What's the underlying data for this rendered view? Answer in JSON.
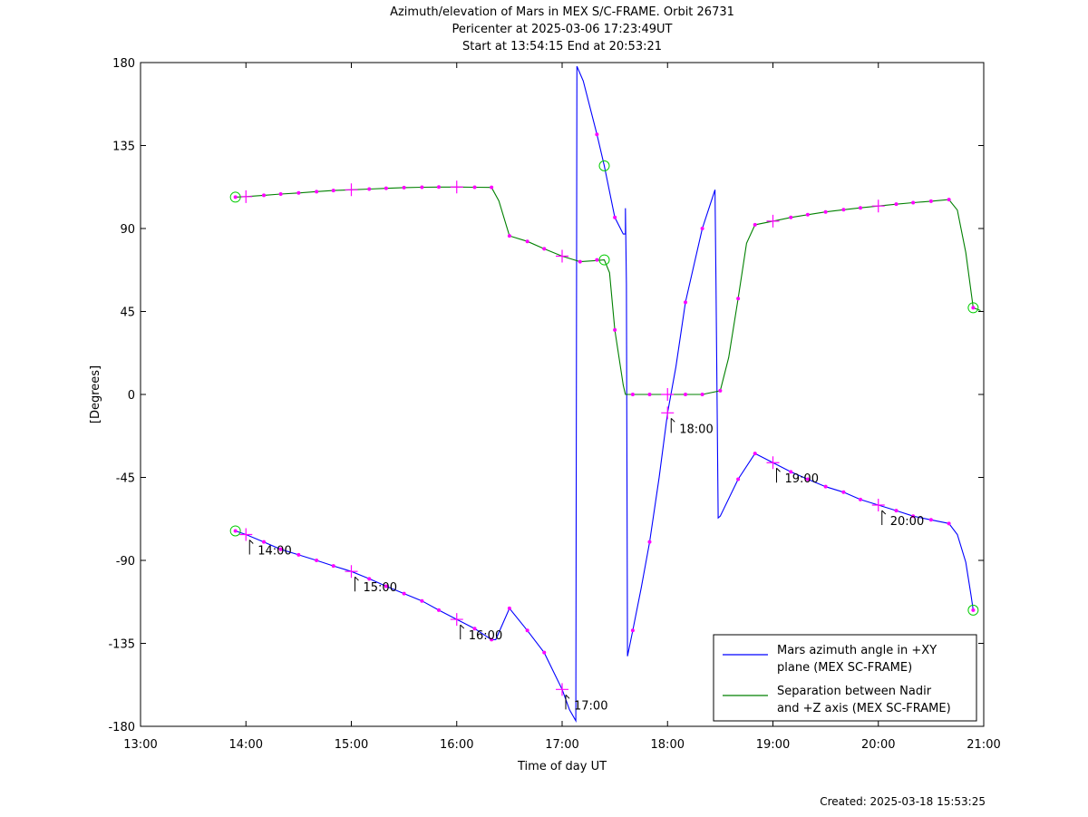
{
  "chart_data": {
    "type": "line",
    "title": [
      "Azimuth/elevation of Mars in MEX S/C-FRAME.  Orbit 26731",
      "Pericenter at 2025-03-06 17:23:49UT",
      "Start at 13:54:15 End at 20:53:21"
    ],
    "xlabel": "Time of day UT",
    "ylabel": "[Degrees]",
    "x_unit": "hours UT",
    "xlim": [
      13,
      21
    ],
    "ylim": [
      -180,
      180
    ],
    "x_ticks": [
      {
        "value": 13,
        "label": "13:00"
      },
      {
        "value": 14,
        "label": "14:00"
      },
      {
        "value": 15,
        "label": "15:00"
      },
      {
        "value": 16,
        "label": "16:00"
      },
      {
        "value": 17,
        "label": "17:00"
      },
      {
        "value": 18,
        "label": "18:00"
      },
      {
        "value": 19,
        "label": "19:00"
      },
      {
        "value": 20,
        "label": "20:00"
      },
      {
        "value": 21,
        "label": "21:00"
      }
    ],
    "y_ticks": [
      {
        "value": 180,
        "label": "180"
      },
      {
        "value": 135,
        "label": "135"
      },
      {
        "value": 90,
        "label": "90"
      },
      {
        "value": 45,
        "label": "45"
      },
      {
        "value": 0,
        "label": "0"
      },
      {
        "value": -45,
        "label": "-45"
      },
      {
        "value": -90,
        "label": "-90"
      },
      {
        "value": -135,
        "label": "-135"
      },
      {
        "value": -180,
        "label": "-180"
      }
    ],
    "grid": false,
    "legend_position": "bottom-right",
    "series": [
      {
        "name": "Mars azimuth angle in +XY plane (MEX SC-FRAME)",
        "legend_lines": [
          "Mars azimuth angle in +XY",
          "plane (MEX SC-FRAME)"
        ],
        "color": "#0000ff",
        "points": [
          [
            13.9,
            -74
          ],
          [
            14.0,
            -76
          ],
          [
            14.17,
            -80
          ],
          [
            14.33,
            -84
          ],
          [
            14.5,
            -87
          ],
          [
            14.67,
            -90
          ],
          [
            14.83,
            -93
          ],
          [
            15.0,
            -96
          ],
          [
            15.17,
            -100
          ],
          [
            15.33,
            -104
          ],
          [
            15.5,
            -108
          ],
          [
            15.67,
            -112
          ],
          [
            15.83,
            -117
          ],
          [
            16.0,
            -122
          ],
          [
            16.17,
            -127
          ],
          [
            16.33,
            -133
          ],
          [
            16.37,
            -133
          ],
          [
            16.5,
            -116
          ],
          [
            16.67,
            -128
          ],
          [
            16.83,
            -140
          ],
          [
            17.0,
            -160
          ],
          [
            17.07,
            -171
          ],
          [
            17.13,
            -177
          ],
          [
            17.14,
            178
          ],
          [
            17.2,
            170
          ],
          [
            17.33,
            141
          ],
          [
            17.4,
            124
          ],
          [
            17.5,
            96
          ],
          [
            17.58,
            87
          ],
          [
            17.6,
            87
          ],
          [
            17.6,
            101
          ],
          [
            17.61,
            60
          ],
          [
            17.62,
            -142
          ],
          [
            17.67,
            -128
          ],
          [
            17.75,
            -105
          ],
          [
            17.83,
            -80
          ],
          [
            17.92,
            -45
          ],
          [
            18.0,
            -10
          ],
          [
            18.08,
            15
          ],
          [
            18.17,
            50
          ],
          [
            18.33,
            90
          ],
          [
            18.45,
            111
          ],
          [
            18.46,
            60
          ],
          [
            18.48,
            -67
          ],
          [
            18.5,
            -66
          ],
          [
            18.67,
            -46
          ],
          [
            18.83,
            -32
          ],
          [
            19.0,
            -37
          ],
          [
            19.17,
            -42
          ],
          [
            19.33,
            -46
          ],
          [
            19.5,
            -50
          ],
          [
            19.67,
            -53
          ],
          [
            19.83,
            -57
          ],
          [
            20.0,
            -60
          ],
          [
            20.17,
            -63
          ],
          [
            20.33,
            -66
          ],
          [
            20.5,
            -68
          ],
          [
            20.67,
            -70
          ],
          [
            20.75,
            -76
          ],
          [
            20.83,
            -91
          ],
          [
            20.88,
            -109
          ],
          [
            20.9,
            -117
          ]
        ],
        "markers": [
          [
            13.9,
            -74
          ],
          [
            14.17,
            -80
          ],
          [
            14.33,
            -84
          ],
          [
            14.5,
            -87
          ],
          [
            14.67,
            -90
          ],
          [
            14.83,
            -93
          ],
          [
            15.17,
            -100
          ],
          [
            15.33,
            -104
          ],
          [
            15.5,
            -108
          ],
          [
            15.67,
            -112
          ],
          [
            15.83,
            -117
          ],
          [
            16.17,
            -127
          ],
          [
            16.33,
            -133
          ],
          [
            16.5,
            -116
          ],
          [
            16.67,
            -128
          ],
          [
            16.83,
            -140
          ],
          [
            17.33,
            141
          ],
          [
            17.5,
            96
          ],
          [
            17.67,
            -128
          ],
          [
            17.83,
            -80
          ],
          [
            18.17,
            50
          ],
          [
            18.33,
            90
          ],
          [
            18.67,
            -46
          ],
          [
            18.83,
            -32
          ],
          [
            19.17,
            -42
          ],
          [
            19.33,
            -46
          ],
          [
            19.5,
            -50
          ],
          [
            19.67,
            -53
          ],
          [
            19.83,
            -57
          ],
          [
            20.17,
            -63
          ],
          [
            20.33,
            -66
          ],
          [
            20.5,
            -68
          ],
          [
            20.67,
            -70
          ],
          [
            20.9,
            -117
          ]
        ],
        "hour_markers": [
          [
            14.0,
            -76
          ],
          [
            15.0,
            -96
          ],
          [
            16.0,
            -122
          ],
          [
            17.0,
            -160
          ],
          [
            18.0,
            -10
          ],
          [
            19.0,
            -37
          ],
          [
            20.0,
            -60
          ]
        ],
        "circles": [
          [
            13.9,
            -74
          ],
          [
            17.4,
            124
          ],
          [
            20.9,
            -117
          ]
        ]
      },
      {
        "name": "Separation between Nadir and +Z axis (MEX SC-FRAME)",
        "legend_lines": [
          "Separation between Nadir",
          "and +Z axis (MEX SC-FRAME)"
        ],
        "color": "#008000",
        "points": [
          [
            13.9,
            107
          ],
          [
            14.0,
            107.3
          ],
          [
            14.17,
            108
          ],
          [
            14.33,
            108.7
          ],
          [
            14.5,
            109.3
          ],
          [
            14.67,
            110
          ],
          [
            14.83,
            110.6
          ],
          [
            15.0,
            111
          ],
          [
            15.17,
            111.4
          ],
          [
            15.33,
            111.8
          ],
          [
            15.5,
            112.2
          ],
          [
            15.67,
            112.4
          ],
          [
            15.83,
            112.5
          ],
          [
            16.0,
            112.5
          ],
          [
            16.17,
            112.4
          ],
          [
            16.33,
            112.3
          ],
          [
            16.4,
            105
          ],
          [
            16.5,
            86
          ],
          [
            16.67,
            83
          ],
          [
            16.83,
            79
          ],
          [
            17.0,
            75
          ],
          [
            17.17,
            72
          ],
          [
            17.3,
            72.5
          ],
          [
            17.4,
            73
          ],
          [
            17.45,
            66
          ],
          [
            17.5,
            35
          ],
          [
            17.58,
            5
          ],
          [
            17.6,
            0
          ],
          [
            17.67,
            0
          ],
          [
            17.83,
            0
          ],
          [
            18.0,
            0
          ],
          [
            18.17,
            0
          ],
          [
            18.33,
            0
          ],
          [
            18.5,
            2
          ],
          [
            18.58,
            20
          ],
          [
            18.67,
            52
          ],
          [
            18.75,
            82
          ],
          [
            18.83,
            92
          ],
          [
            19.0,
            94
          ],
          [
            19.17,
            96
          ],
          [
            19.33,
            97.5
          ],
          [
            19.5,
            99
          ],
          [
            19.67,
            100.2
          ],
          [
            19.83,
            101.2
          ],
          [
            20.0,
            102.2
          ],
          [
            20.17,
            103.2
          ],
          [
            20.33,
            104
          ],
          [
            20.5,
            104.8
          ],
          [
            20.67,
            105.7
          ],
          [
            20.75,
            100
          ],
          [
            20.83,
            77
          ],
          [
            20.9,
            47
          ],
          [
            20.97,
            45.5
          ]
        ],
        "markers": [
          [
            13.9,
            107
          ],
          [
            14.17,
            108
          ],
          [
            14.33,
            108.7
          ],
          [
            14.5,
            109.3
          ],
          [
            14.67,
            110
          ],
          [
            14.83,
            110.6
          ],
          [
            15.17,
            111.4
          ],
          [
            15.33,
            111.8
          ],
          [
            15.5,
            112.2
          ],
          [
            15.67,
            112.4
          ],
          [
            15.83,
            112.5
          ],
          [
            16.17,
            112.4
          ],
          [
            16.33,
            112.3
          ],
          [
            16.5,
            86
          ],
          [
            16.67,
            83
          ],
          [
            16.83,
            79
          ],
          [
            17.17,
            72
          ],
          [
            17.33,
            73
          ],
          [
            17.5,
            35
          ],
          [
            17.67,
            0
          ],
          [
            17.83,
            0
          ],
          [
            18.17,
            0
          ],
          [
            18.33,
            0
          ],
          [
            18.5,
            2
          ],
          [
            18.67,
            52
          ],
          [
            18.83,
            92
          ],
          [
            19.17,
            96
          ],
          [
            19.33,
            97.5
          ],
          [
            19.5,
            99
          ],
          [
            19.67,
            100.2
          ],
          [
            19.83,
            101.2
          ],
          [
            20.17,
            103.2
          ],
          [
            20.33,
            104
          ],
          [
            20.5,
            104.8
          ],
          [
            20.67,
            105.7
          ],
          [
            20.9,
            47
          ]
        ],
        "hour_markers": [
          [
            14.0,
            107.3
          ],
          [
            15.0,
            111
          ],
          [
            16.0,
            112.5
          ],
          [
            17.0,
            75
          ],
          [
            18.0,
            0
          ],
          [
            19.0,
            94
          ],
          [
            20.0,
            102.2
          ]
        ],
        "circles": [
          [
            13.9,
            107
          ],
          [
            17.4,
            73
          ],
          [
            20.9,
            47
          ]
        ]
      }
    ],
    "annotations": [
      {
        "x": 14.0,
        "y": -76,
        "text": "14:00"
      },
      {
        "x": 15.0,
        "y": -96,
        "text": "15:00"
      },
      {
        "x": 16.0,
        "y": -122,
        "text": "16:00"
      },
      {
        "x": 17.0,
        "y": -160,
        "text": "17:00"
      },
      {
        "x": 18.0,
        "y": -10,
        "text": "18:00"
      },
      {
        "x": 19.0,
        "y": -37,
        "text": "19:00"
      },
      {
        "x": 20.0,
        "y": -60,
        "text": "20:00"
      }
    ],
    "marker_color": "#ff00ff",
    "circle_color": "#00cc00"
  },
  "footer": {
    "created": "Created: 2025-03-18 15:53:25"
  }
}
